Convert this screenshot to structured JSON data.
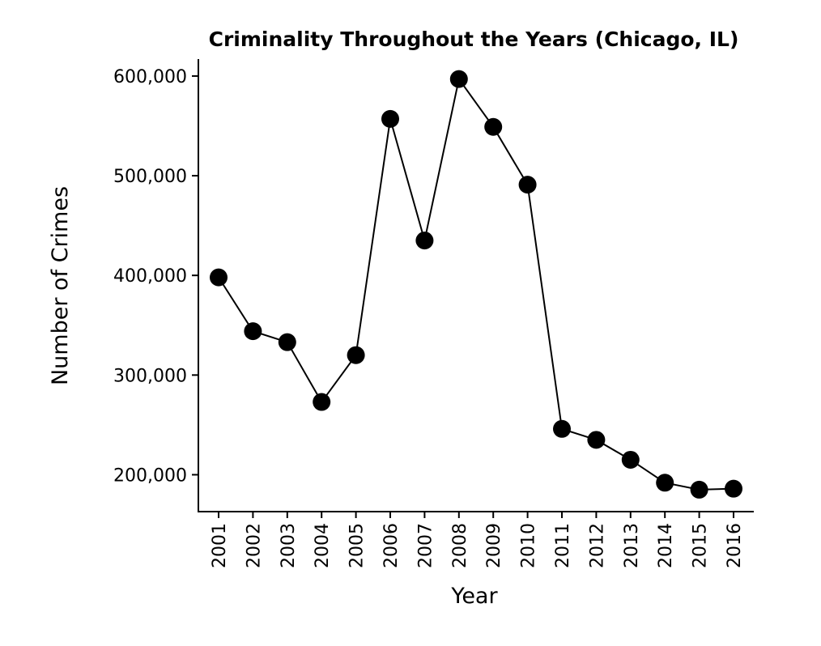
{
  "chart_data": {
    "type": "line",
    "title": "Criminality Throughout the Years (Chicago, IL)",
    "xlabel": "Year",
    "ylabel": "Number of Crimes",
    "ylim": [
      163000,
      617000
    ],
    "yticks": [
      200000,
      300000,
      400000,
      500000,
      600000
    ],
    "ytick_labels": [
      "200,000",
      "300,000",
      "400,000",
      "500,000",
      "600,000"
    ],
    "categories": [
      "2001",
      "2002",
      "2003",
      "2004",
      "2005",
      "2006",
      "2007",
      "2008",
      "2009",
      "2010",
      "2011",
      "2012",
      "2013",
      "2014",
      "2015",
      "2016"
    ],
    "series": [
      {
        "values": [
          398000,
          344000,
          333000,
          273000,
          320000,
          557000,
          435000,
          597000,
          549000,
          491000,
          246000,
          235000,
          215000,
          192000,
          185000,
          186000
        ],
        "color": "#000000",
        "marker": "circle"
      }
    ],
    "grid": false,
    "legend": "none"
  }
}
